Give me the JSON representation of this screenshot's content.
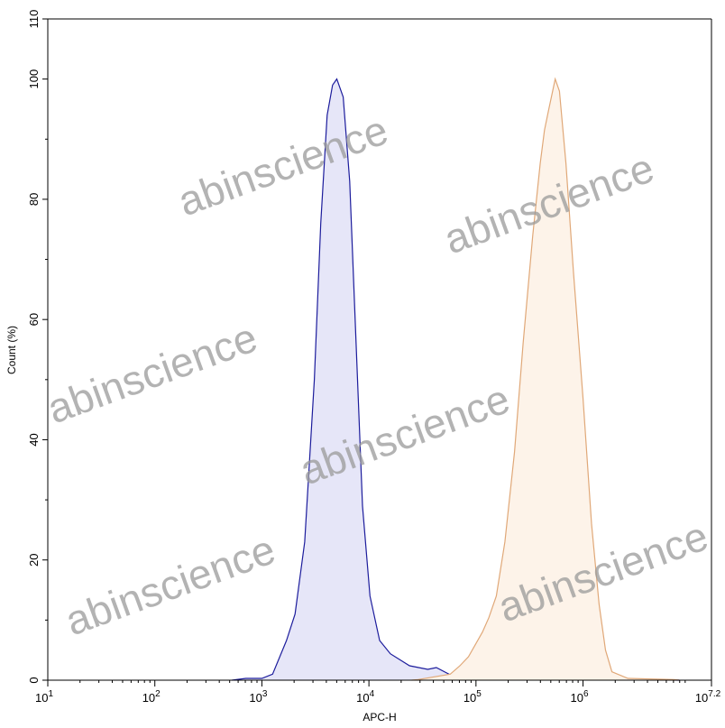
{
  "chart_data": {
    "type": "area",
    "xlabel": "APC-H",
    "ylabel": "Count (%)",
    "xscale": "log",
    "xlim_log10": [
      1,
      7.2
    ],
    "ylim": [
      0,
      110
    ],
    "x_ticks": [
      {
        "base": "10",
        "exp": "1"
      },
      {
        "base": "10",
        "exp": "2"
      },
      {
        "base": "10",
        "exp": "3"
      },
      {
        "base": "10",
        "exp": "4"
      },
      {
        "base": "10",
        "exp": "5"
      },
      {
        "base": "10",
        "exp": "6"
      },
      {
        "base": "10",
        "exp": "7.2"
      }
    ],
    "y_ticks": [
      "0",
      "20",
      "40",
      "60",
      "80",
      "100",
      "110"
    ],
    "grid": false,
    "series": [
      {
        "color": "#1c1c9c",
        "fill": "#e6e6f8",
        "points_log10x_y": [
          [
            2.72,
            0
          ],
          [
            2.85,
            0.3
          ],
          [
            3.0,
            0.3
          ],
          [
            3.1,
            1
          ],
          [
            3.23,
            6.6
          ],
          [
            3.31,
            11
          ],
          [
            3.4,
            23
          ],
          [
            3.49,
            50
          ],
          [
            3.55,
            76
          ],
          [
            3.61,
            94
          ],
          [
            3.66,
            99
          ],
          [
            3.7,
            100
          ],
          [
            3.76,
            97
          ],
          [
            3.82,
            83
          ],
          [
            3.88,
            56
          ],
          [
            3.94,
            29
          ],
          [
            4.01,
            14
          ],
          [
            4.1,
            6.6
          ],
          [
            4.2,
            4.4
          ],
          [
            4.38,
            2.4
          ],
          [
            4.55,
            1.8
          ],
          [
            4.63,
            2.1
          ],
          [
            4.76,
            0.9
          ],
          [
            4.97,
            1.2
          ],
          [
            5.31,
            0.6
          ],
          [
            5.66,
            0.3
          ],
          [
            6.5,
            0.1
          ],
          [
            6.9,
            0
          ]
        ]
      },
      {
        "color": "#e0a878",
        "fill": "#fdf3e9",
        "points_log10x_y": [
          [
            4.4,
            0
          ],
          [
            4.46,
            0.1
          ],
          [
            4.76,
            1
          ],
          [
            4.85,
            2.4
          ],
          [
            4.93,
            3.9
          ],
          [
            5.06,
            8
          ],
          [
            5.12,
            10.4
          ],
          [
            5.19,
            14
          ],
          [
            5.27,
            23
          ],
          [
            5.36,
            38
          ],
          [
            5.44,
            56
          ],
          [
            5.53,
            74
          ],
          [
            5.6,
            86
          ],
          [
            5.64,
            91.5
          ],
          [
            5.68,
            95
          ],
          [
            5.74,
            100
          ],
          [
            5.78,
            98
          ],
          [
            5.84,
            86
          ],
          [
            5.91,
            68
          ],
          [
            6.0,
            47
          ],
          [
            6.08,
            26
          ],
          [
            6.15,
            12.6
          ],
          [
            6.21,
            5
          ],
          [
            6.27,
            1.4
          ],
          [
            6.42,
            0.3
          ],
          [
            6.85,
            0.1
          ],
          [
            6.9,
            0
          ]
        ]
      }
    ]
  },
  "watermark": "abinscience"
}
